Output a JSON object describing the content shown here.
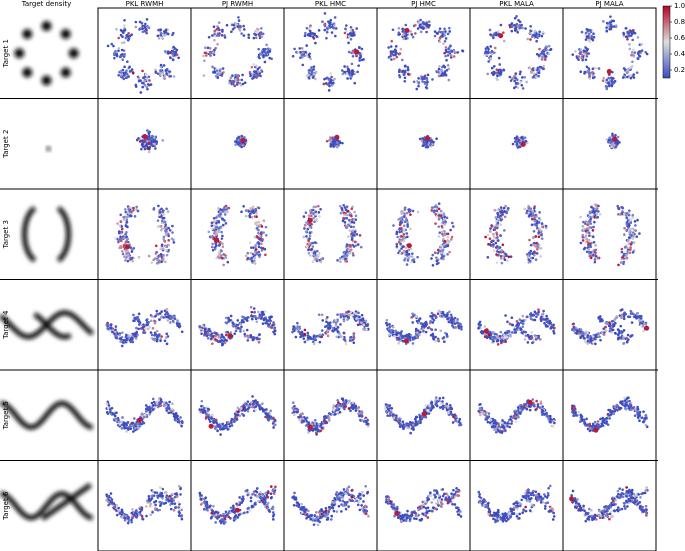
{
  "figure": {
    "columns": [
      "Target density",
      "PKL RWMH",
      "PJ RWMH",
      "PKL HMC",
      "PJ HMC",
      "PKL MALA",
      "PJ MALA"
    ],
    "rows": [
      "Target 1",
      "Target 2",
      "Target 3",
      "Target 4",
      "Target 5",
      "Target 6"
    ],
    "colorbar": {
      "lim": [
        0.1,
        1.0
      ],
      "ticks": [
        {
          "value": 1,
          "label": "1.0"
        },
        0.8,
        0.6,
        0.4,
        0.2
      ]
    }
  }
}
